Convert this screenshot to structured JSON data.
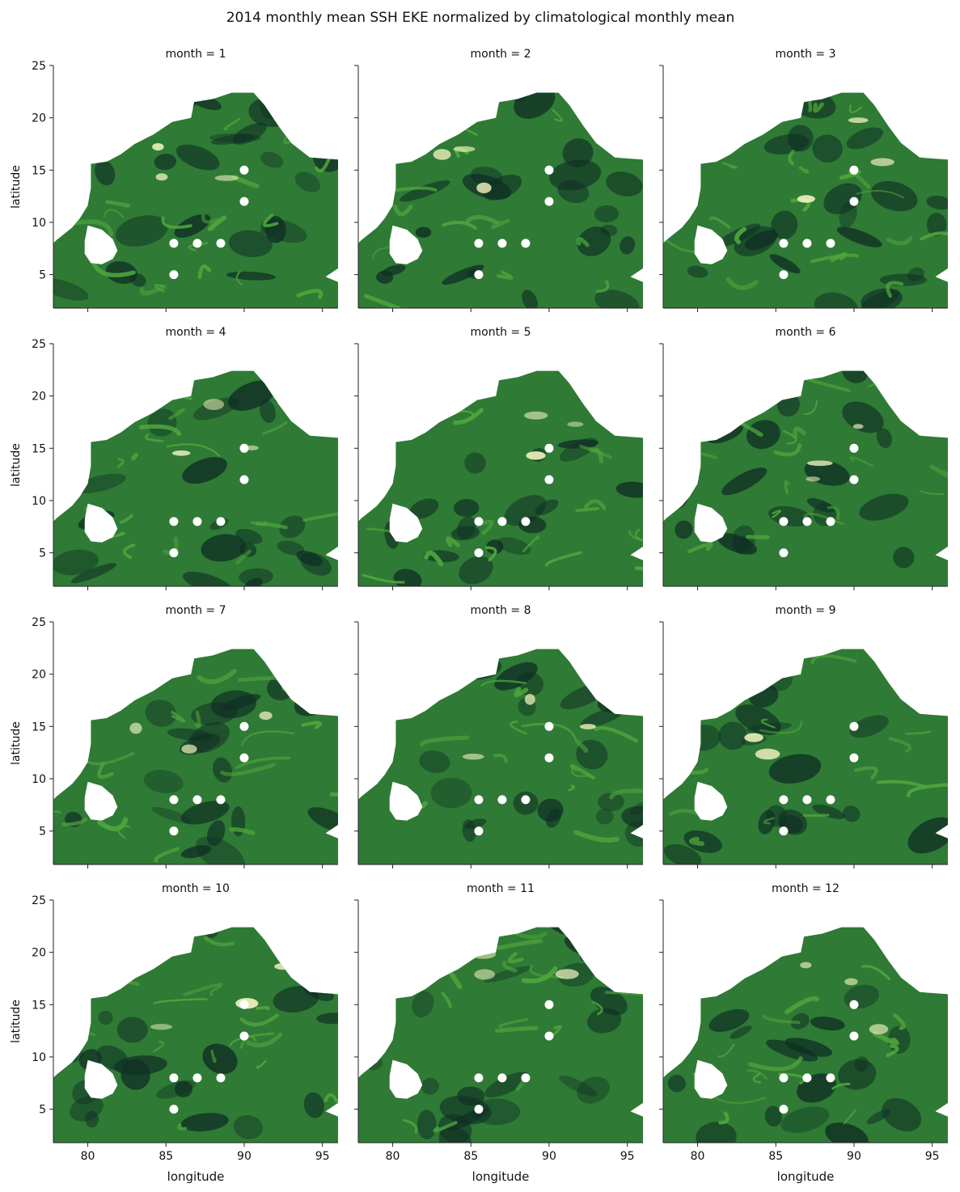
{
  "figure": {
    "title": "2014 monthly mean SSH EKE normalized by climatological monthly mean"
  },
  "colors": {
    "field_low": "#0f2e24",
    "field_mid": "#2f7a35",
    "field_high": "#4fa63c",
    "field_peak": "#fffbc8",
    "marker": "#ffffff",
    "axis": "#222222"
  },
  "chart_data": {
    "type": "heatmap",
    "colormap": "dark green to pale yellow",
    "xlabel": "longitude",
    "ylabel": "latitude",
    "xlim": [
      77.8,
      96.0
    ],
    "ylim": [
      1.8,
      25.0
    ],
    "xticks": [
      80,
      85,
      90,
      95
    ],
    "yticks": [
      5,
      10,
      15,
      20,
      25
    ],
    "x_tick_labels": [
      "80",
      "85",
      "90",
      "95"
    ],
    "y_tick_labels": [
      "5",
      "10",
      "15",
      "20",
      "25"
    ],
    "grid": false,
    "markers": [
      {
        "lon": 85.5,
        "lat": 5
      },
      {
        "lon": 85.5,
        "lat": 8
      },
      {
        "lon": 87.0,
        "lat": 8
      },
      {
        "lon": 88.5,
        "lat": 8
      },
      {
        "lon": 90.0,
        "lat": 12
      },
      {
        "lon": 90.0,
        "lat": 15
      }
    ],
    "panels": [
      {
        "title": "month = 1",
        "month": 1
      },
      {
        "title": "month = 2",
        "month": 2
      },
      {
        "title": "month = 3",
        "month": 3
      },
      {
        "title": "month = 4",
        "month": 4
      },
      {
        "title": "month = 5",
        "month": 5
      },
      {
        "title": "month = 6",
        "month": 6
      },
      {
        "title": "month = 7",
        "month": 7
      },
      {
        "title": "month = 8",
        "month": 8
      },
      {
        "title": "month = 9",
        "month": 9
      },
      {
        "title": "month = 10",
        "month": 10
      },
      {
        "title": "month = 11",
        "month": 11
      },
      {
        "title": "month = 12",
        "month": 12
      }
    ]
  }
}
